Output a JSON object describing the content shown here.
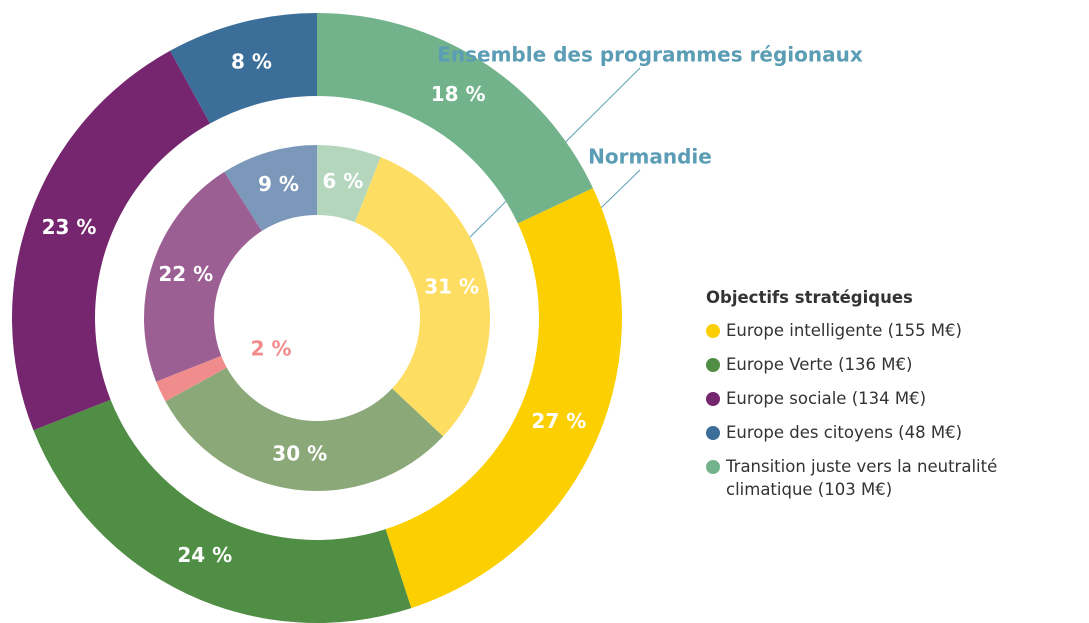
{
  "chart_data": {
    "type": "donut",
    "legend_title": "Objectifs stratégiques",
    "categories": [
      "Transition juste vers la neutralité climatique (103 M€)",
      "Europe intelligente (155 M€)",
      "Europe Verte (136 M€)",
      null,
      "Europe sociale (134 M€)",
      "Europe des citoyens (48 M€)"
    ],
    "series": [
      {
        "name": "Normandie",
        "values": [
          18,
          27,
          24,
          null,
          23,
          8
        ],
        "value_labels": [
          "18 %",
          "27 %",
          "24 %",
          null,
          "23 %",
          "8 %"
        ],
        "colors": [
          "#72b38b",
          "#fccf00",
          "#4f8e44",
          null,
          "#75266f",
          "#3b6e99"
        ]
      },
      {
        "name": "Ensemble des programmes régionaux",
        "values": [
          6,
          31,
          30,
          2,
          22,
          9
        ],
        "value_labels": [
          "6 %",
          "31 %",
          "30 %",
          "2 %",
          "22 %",
          "9 %"
        ],
        "colors": [
          "#b3d6bd",
          "#fedd63",
          "#8ba878",
          "#f08c8c",
          "#9c5f93",
          "#7b97b9"
        ]
      }
    ]
  }
}
